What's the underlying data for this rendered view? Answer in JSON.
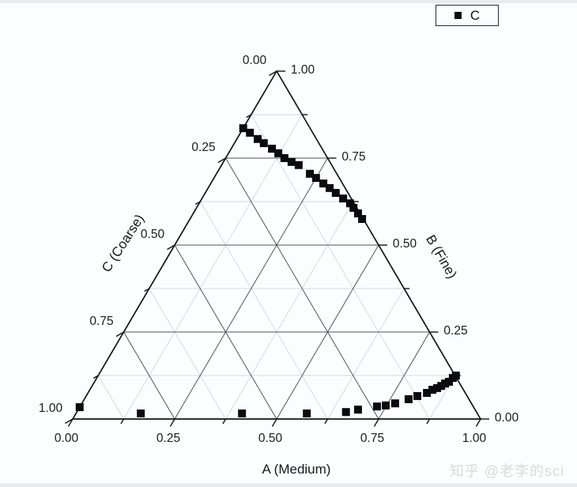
{
  "legend": {
    "series_label": "C",
    "marker_color": "#0a0a0f"
  },
  "watermark": {
    "text": "知乎 @老李的sci"
  },
  "chart_data": {
    "type": "ternary-scatter",
    "title": "",
    "axes": {
      "bottom": {
        "title": "A (Medium)",
        "min": 0,
        "max": 1,
        "ticks": [
          "0.00",
          "0.25",
          "0.50",
          "0.75",
          "1.00"
        ]
      },
      "left": {
        "title": "C (Coarse)",
        "min": 0,
        "max": 1,
        "ticks": [
          "0.00",
          "0.25",
          "0.50",
          "0.75",
          "1.00"
        ]
      },
      "right": {
        "title": "B (Fine)",
        "min": 0,
        "max": 1,
        "ticks": [
          "1.00",
          "0.75",
          "0.50",
          "0.25",
          "0.00"
        ]
      }
    },
    "grid": {
      "major_step": 0.25,
      "minor_step": 0.125,
      "major_color": "#53535a",
      "minor_color": "#d5d8df",
      "edge_color": "#141419"
    },
    "series": [
      {
        "name": "C",
        "marker": "square",
        "color": "#0a0a0f",
        "points": [
          {
            "a": 0.0,
            "b": 0.836,
            "c": 0.164
          },
          {
            "a": 0.023,
            "b": 0.823,
            "c": 0.154
          },
          {
            "a": 0.051,
            "b": 0.805,
            "c": 0.144
          },
          {
            "a": 0.072,
            "b": 0.793,
            "c": 0.135
          },
          {
            "a": 0.1,
            "b": 0.777,
            "c": 0.123
          },
          {
            "a": 0.122,
            "b": 0.764,
            "c": 0.114
          },
          {
            "a": 0.144,
            "b": 0.75,
            "c": 0.106
          },
          {
            "a": 0.167,
            "b": 0.739,
            "c": 0.094
          },
          {
            "a": 0.189,
            "b": 0.73,
            "c": 0.081
          },
          {
            "a": 0.229,
            "b": 0.705,
            "c": 0.066
          },
          {
            "a": 0.25,
            "b": 0.693,
            "c": 0.057
          },
          {
            "a": 0.276,
            "b": 0.677,
            "c": 0.047
          },
          {
            "a": 0.298,
            "b": 0.664,
            "c": 0.038
          },
          {
            "a": 0.32,
            "b": 0.65,
            "c": 0.03
          },
          {
            "a": 0.346,
            "b": 0.634,
            "c": 0.02
          },
          {
            "a": 0.37,
            "b": 0.62,
            "c": 0.01
          },
          {
            "a": 0.385,
            "b": 0.607,
            "c": 0.008
          },
          {
            "a": 0.404,
            "b": 0.591,
            "c": 0.005
          },
          {
            "a": 0.422,
            "b": 0.575,
            "c": 0.003
          },
          {
            "a": 0.0,
            "b": 0.034,
            "c": 0.966
          },
          {
            "a": 0.159,
            "b": 0.016,
            "c": 0.825
          },
          {
            "a": 0.407,
            "b": 0.016,
            "c": 0.577
          },
          {
            "a": 0.566,
            "b": 0.016,
            "c": 0.418
          },
          {
            "a": 0.66,
            "b": 0.02,
            "c": 0.32
          },
          {
            "a": 0.686,
            "b": 0.027,
            "c": 0.287
          },
          {
            "a": 0.728,
            "b": 0.036,
            "c": 0.236
          },
          {
            "a": 0.748,
            "b": 0.039,
            "c": 0.213
          },
          {
            "a": 0.768,
            "b": 0.045,
            "c": 0.187
          },
          {
            "a": 0.795,
            "b": 0.057,
            "c": 0.148
          },
          {
            "a": 0.812,
            "b": 0.066,
            "c": 0.122
          },
          {
            "a": 0.831,
            "b": 0.075,
            "c": 0.094
          },
          {
            "a": 0.84,
            "b": 0.084,
            "c": 0.076
          },
          {
            "a": 0.849,
            "b": 0.089,
            "c": 0.062
          },
          {
            "a": 0.856,
            "b": 0.095,
            "c": 0.049
          },
          {
            "a": 0.862,
            "b": 0.102,
            "c": 0.036
          },
          {
            "a": 0.869,
            "b": 0.107,
            "c": 0.024
          },
          {
            "a": 0.873,
            "b": 0.118,
            "c": 0.009
          },
          {
            "a": 0.877,
            "b": 0.125,
            "c": 0.0
          }
        ]
      }
    ]
  }
}
